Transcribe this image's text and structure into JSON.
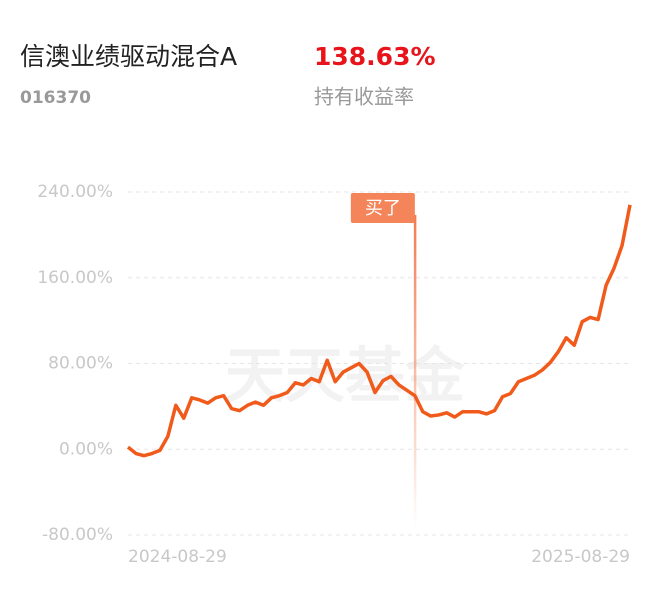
{
  "header": {
    "title": "信澳业绩驱动混合A",
    "code": "016370",
    "return_value": "138.63%",
    "return_label": "持有收益率"
  },
  "chart_data": {
    "type": "line",
    "watermark": "天天基金",
    "color": "#f05a1a",
    "categories": [
      "2024-08-29",
      null,
      null,
      null,
      null,
      null,
      null,
      null,
      null,
      null,
      null,
      null,
      null,
      null,
      null,
      null,
      null,
      null,
      null,
      null,
      null,
      null,
      null,
      null,
      null,
      null,
      null,
      null,
      null,
      null,
      null,
      null,
      null,
      null,
      null,
      null,
      null,
      null,
      null,
      null,
      null,
      null,
      null,
      null,
      null,
      null,
      null,
      null,
      null,
      null,
      null,
      null,
      null,
      null,
      null,
      null,
      null,
      null,
      null,
      null,
      null,
      null,
      null,
      "2025-08-29"
    ],
    "values": [
      2,
      -4,
      -6,
      -4,
      -1,
      12,
      41,
      29,
      48,
      46,
      43,
      48,
      50,
      38,
      36,
      41,
      44,
      41,
      48,
      50,
      53,
      62,
      60,
      66,
      63,
      83,
      63,
      72,
      76,
      80,
      72,
      53,
      64,
      68,
      60,
      55,
      50,
      35,
      31,
      32,
      34,
      30,
      35,
      35,
      35,
      33,
      36,
      49,
      52,
      63,
      66,
      69,
      74,
      81,
      91,
      104,
      97,
      119,
      123,
      121,
      153,
      169,
      190,
      228
    ],
    "annotation": {
      "text": "买了",
      "index": 36
    },
    "ylim": [
      -80,
      240
    ],
    "yticks": [
      {
        "value": -80,
        "label": "-80.00%"
      },
      {
        "value": 0,
        "label": "0.00%"
      },
      {
        "value": 80,
        "label": "80.00%"
      },
      {
        "value": 160,
        "label": "160.00%"
      },
      {
        "value": 240,
        "label": "240.00%"
      }
    ],
    "grid": true
  }
}
